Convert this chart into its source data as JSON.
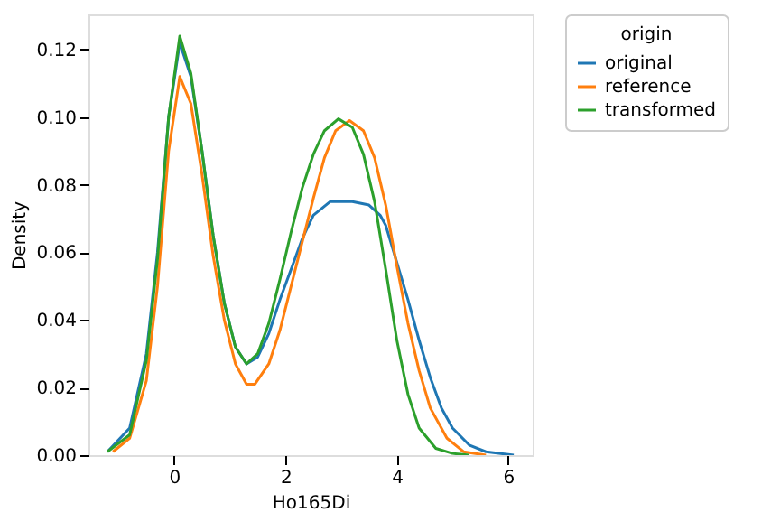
{
  "chart_data": {
    "type": "line",
    "xlabel": "Ho165Di",
    "ylabel": "Density",
    "legend_title": "origin",
    "legend": "right",
    "grid": false,
    "marker": "none",
    "line_style": "solid",
    "xlim": [
      -1.54,
      6.44
    ],
    "xticks": [
      0,
      2,
      4,
      6
    ],
    "ylim": [
      0,
      0.1304
    ],
    "yticks": [
      {
        "value": 0,
        "label": "0.00"
      },
      {
        "value": 0.02,
        "label": "0.02"
      },
      {
        "value": 0.04,
        "label": "0.04"
      },
      {
        "value": 0.06,
        "label": "0.06"
      },
      {
        "value": 0.08,
        "label": "0.08"
      },
      {
        "value": 0.1,
        "label": "0.10"
      },
      {
        "value": 0.12,
        "label": "0.12"
      }
    ],
    "series": [
      {
        "name": "original",
        "color": "#1f77b4",
        "x": [
          -1.2,
          -0.8,
          -0.5,
          -0.3,
          -0.1,
          0.1,
          0.3,
          0.5,
          0.7,
          0.9,
          1.1,
          1.3,
          1.5,
          1.7,
          1.9,
          2.1,
          2.3,
          2.5,
          2.8,
          3.2,
          3.5,
          3.7,
          3.8,
          4.0,
          4.2,
          4.4,
          4.6,
          4.8,
          5.0,
          5.3,
          5.6,
          6.1
        ],
        "values": [
          0.001,
          0.008,
          0.03,
          0.06,
          0.1,
          0.122,
          0.112,
          0.09,
          0.065,
          0.045,
          0.032,
          0.027,
          0.029,
          0.036,
          0.046,
          0.055,
          0.064,
          0.071,
          0.075,
          0.075,
          0.074,
          0.071,
          0.068,
          0.057,
          0.046,
          0.034,
          0.023,
          0.014,
          0.008,
          0.003,
          0.001,
          0.0
        ]
      },
      {
        "name": "reference",
        "color": "#ff7f0e",
        "x": [
          -1.1,
          -0.8,
          -0.5,
          -0.3,
          -0.1,
          0.1,
          0.3,
          0.5,
          0.7,
          0.9,
          1.1,
          1.3,
          1.45,
          1.7,
          1.9,
          2.1,
          2.3,
          2.5,
          2.7,
          2.9,
          3.15,
          3.4,
          3.6,
          3.8,
          4.0,
          4.2,
          4.4,
          4.6,
          4.9,
          5.2,
          5.6
        ],
        "values": [
          0.001,
          0.005,
          0.022,
          0.05,
          0.09,
          0.112,
          0.104,
          0.083,
          0.059,
          0.04,
          0.027,
          0.021,
          0.021,
          0.027,
          0.037,
          0.05,
          0.063,
          0.076,
          0.088,
          0.096,
          0.099,
          0.096,
          0.088,
          0.074,
          0.056,
          0.039,
          0.025,
          0.014,
          0.005,
          0.001,
          0.0
        ]
      },
      {
        "name": "transformed",
        "color": "#2ca02c",
        "x": [
          -1.2,
          -0.8,
          -0.5,
          -0.3,
          -0.1,
          0.1,
          0.3,
          0.5,
          0.7,
          0.9,
          1.1,
          1.3,
          1.5,
          1.7,
          1.9,
          2.1,
          2.3,
          2.5,
          2.7,
          2.95,
          3.2,
          3.4,
          3.6,
          3.8,
          4.0,
          4.2,
          4.4,
          4.7,
          5.0,
          5.3
        ],
        "values": [
          0.001,
          0.006,
          0.028,
          0.058,
          0.1,
          0.124,
          0.113,
          0.09,
          0.065,
          0.045,
          0.032,
          0.027,
          0.03,
          0.039,
          0.052,
          0.066,
          0.079,
          0.089,
          0.096,
          0.0995,
          0.097,
          0.089,
          0.075,
          0.055,
          0.034,
          0.018,
          0.008,
          0.002,
          0.0005,
          0.0
        ]
      }
    ]
  }
}
